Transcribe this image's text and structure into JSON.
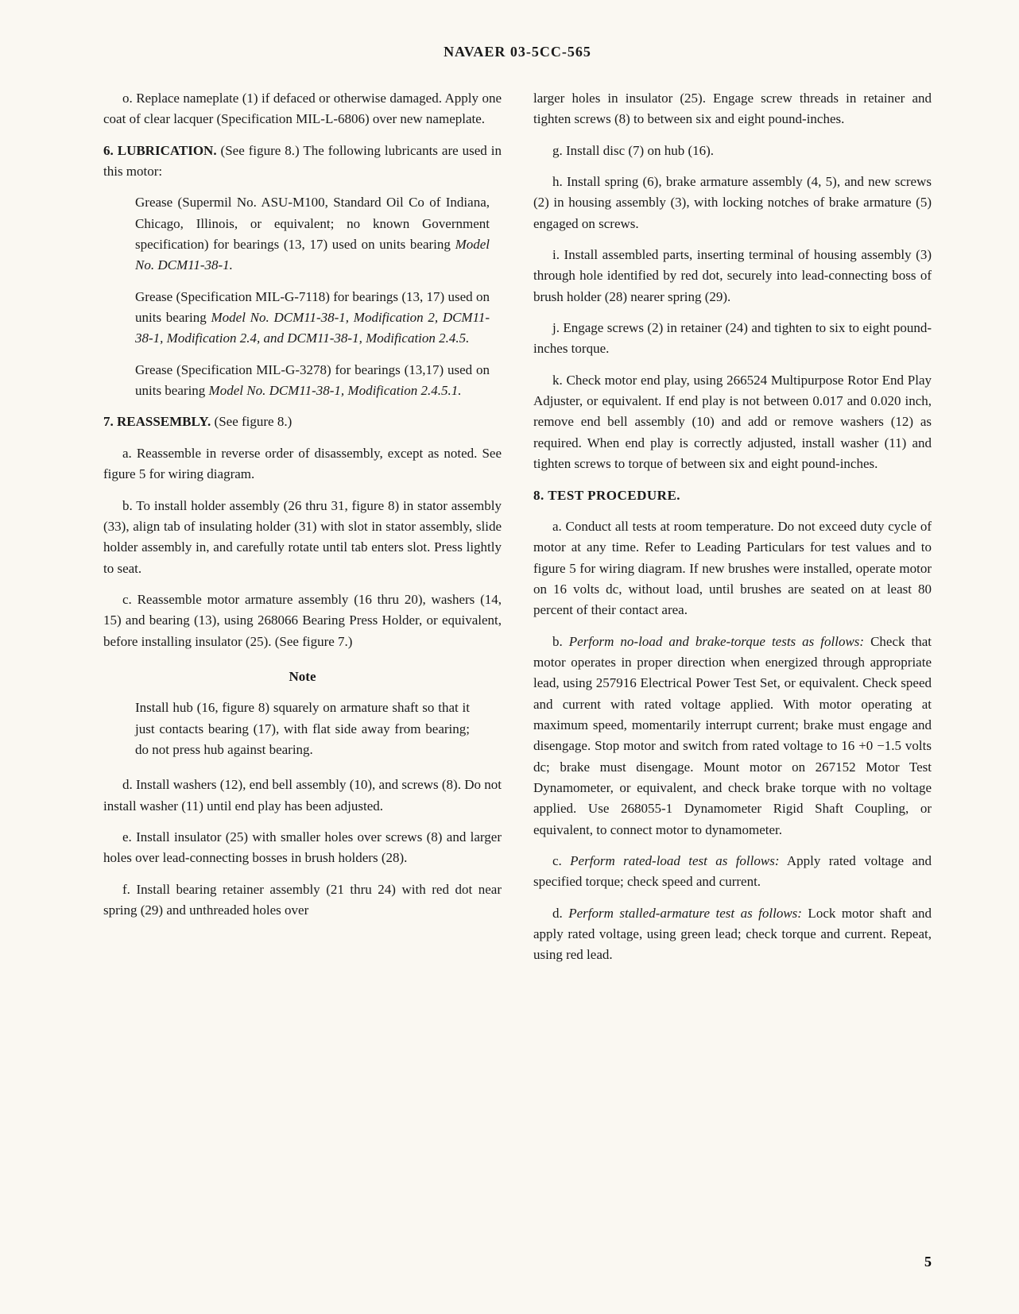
{
  "header": "NAVAER 03-5CC-565",
  "page_number": "5",
  "left_column": {
    "para_o": "o. Replace nameplate (1) if defaced or otherwise damaged. Apply one coat of clear lacquer (Specification MIL-L-6806) over new nameplate.",
    "section_6_heading": "6. LUBRICATION.",
    "section_6_text": " (See figure 8.) The following lubricants are used in this motor:",
    "grease_1_text": "Grease (Supermil No. ASU-M100, Standard Oil Co of Indiana, Chicago, Illinois, or equivalent; no known Government specification) for bearings (13, 17) used on units bearing ",
    "grease_1_model": "Model No. DCM11-38-1.",
    "grease_2_text": "Grease (Specification MIL-G-7118) for bearings (13, 17) used on units bearing ",
    "grease_2_model": "Model No. DCM11-38-1, Modification 2, DCM11-38-1, Modification 2.4, and DCM11-38-1, Modification 2.4.5.",
    "grease_3_text": "Grease (Specification MIL-G-3278) for bearings (13,17) used on units bearing ",
    "grease_3_model": "Model No. DCM11-38-1, Modification 2.4.5.1.",
    "section_7_heading": "7. REASSEMBLY.",
    "section_7_text": " (See figure 8.)",
    "para_7a": "a. Reassemble in reverse order of disassembly, except as noted. See figure 5 for wiring diagram.",
    "para_7b": "b. To install holder assembly (26 thru 31, figure 8) in stator assembly (33), align tab of insulating holder (31) with slot in stator assembly, slide holder assembly in, and carefully rotate until tab enters slot. Press lightly to seat.",
    "para_7c": "c. Reassemble motor armature assembly (16 thru 20), washers (14, 15) and bearing (13), using 268066 Bearing Press Holder, or equivalent, before installing insulator (25). (See figure 7.)",
    "note_heading": "Note",
    "note_body": "Install hub (16, figure 8) squarely on armature shaft so that it just contacts bearing (17), with flat side away from bearing; do not press hub against bearing.",
    "para_7d": "d. Install washers (12), end bell assembly (10), and screws (8). Do not install washer (11) until end play has been adjusted.",
    "para_7e": "e. Install insulator (25) with smaller holes over screws (8) and larger holes over lead-connecting bosses in brush holders (28).",
    "para_7f": "f. Install bearing retainer assembly (21 thru 24) with red dot near spring (29) and unthreaded holes over"
  },
  "right_column": {
    "para_7f_cont": "larger holes in insulator (25). Engage screw threads in retainer and tighten screws (8) to between six and eight pound-inches.",
    "para_7g": "g. Install disc (7) on hub (16).",
    "para_7h": "h. Install spring (6), brake armature assembly (4, 5), and new screws (2) in housing assembly (3), with locking notches of brake armature (5) engaged on screws.",
    "para_7i": "i. Install assembled parts, inserting terminal of housing assembly (3) through hole identified by red dot, securely into lead-connecting boss of brush holder (28) nearer spring (29).",
    "para_7j": "j. Engage screws (2) in retainer (24) and tighten to six to eight pound-inches torque.",
    "para_7k": "k. Check motor end play, using 266524 Multipurpose Rotor End Play Adjuster, or equivalent. If end play is not between 0.017 and 0.020 inch, remove end bell assembly (10) and add or remove washers (12) as required. When end play is correctly adjusted, install washer (11) and tighten screws to torque of between six and eight pound-inches.",
    "section_8_heading": "8. TEST PROCEDURE.",
    "para_8a": "a. Conduct all tests at room temperature. Do not exceed duty cycle of motor at any time. Refer to Leading Particulars for test values and to figure 5 for wiring diagram. If new brushes were installed, operate motor on 16 volts dc, without load, until brushes are seated on at least 80 percent of their contact area.",
    "para_8b_prefix": "b. ",
    "para_8b_italic": "Perform no-load and brake-torque tests as follows:",
    "para_8b_text": " Check that motor operates in proper direction when energized through appropriate lead, using 257916 Electrical Power Test Set, or equivalent. Check speed and current with rated voltage applied. With motor operating at maximum speed, momentarily interrupt current; brake must engage and disengage. Stop motor and switch from rated voltage to 16 +0 −1.5 volts dc; brake must disengage. Mount motor on 267152 Motor Test Dynamometer, or equivalent, and check brake torque with no voltage applied. Use 268055-1 Dynamometer Rigid Shaft Coupling, or equivalent, to connect motor to dynamometer.",
    "para_8c_prefix": "c. ",
    "para_8c_italic": "Perform rated-load test as follows:",
    "para_8c_text": " Apply rated voltage and specified torque; check speed and current.",
    "para_8d_prefix": "d. ",
    "para_8d_italic": "Perform stalled-armature test as follows:",
    "para_8d_text": " Lock motor shaft and apply rated voltage, using green lead; check torque and current. Repeat, using red lead."
  }
}
